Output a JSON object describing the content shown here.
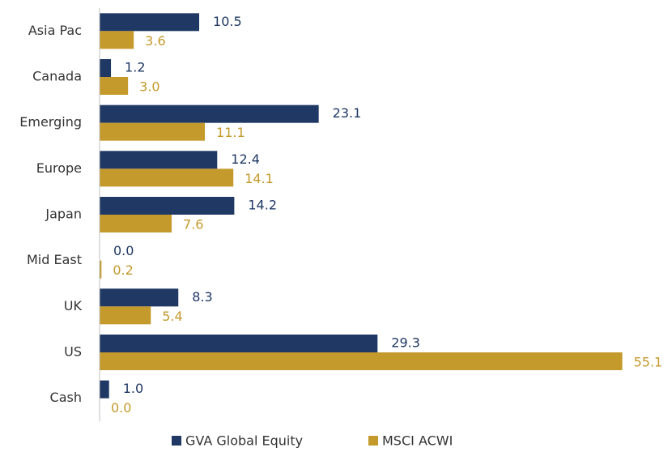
{
  "chart_data": {
    "type": "hbar",
    "categories": [
      "Asia Pac",
      "Canada",
      "Emerging",
      "Europe",
      "Japan",
      "Mid East",
      "UK",
      "US",
      "Cash"
    ],
    "series": [
      {
        "name": "GVA Global Equity",
        "color": "#1f3864",
        "values": [
          10.5,
          1.2,
          23.1,
          12.4,
          14.2,
          0.0,
          8.3,
          29.3,
          1.0
        ],
        "value_labels": [
          "10.5",
          "1.2",
          "23.1",
          "12.4",
          "14.2",
          "0.0",
          "8.3",
          "29.3",
          "1.0"
        ]
      },
      {
        "name": "MSCI ACWI",
        "color": "#c49a2c",
        "values": [
          3.6,
          3.0,
          11.1,
          14.1,
          7.6,
          0.2,
          5.4,
          55.1,
          0.0
        ],
        "value_labels": [
          "3.6",
          "3.0",
          "11.1",
          "14.1",
          "7.6",
          "0.2",
          "5.4",
          "55.1",
          "0.0"
        ]
      }
    ],
    "xlim": [
      0,
      60
    ]
  }
}
